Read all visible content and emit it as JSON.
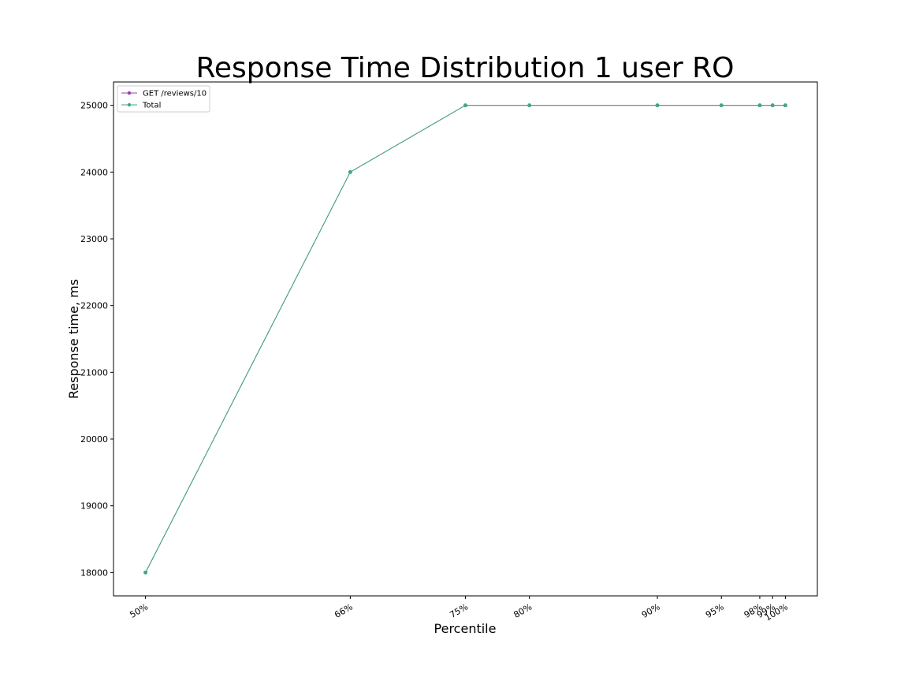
{
  "chart_data": {
    "type": "line",
    "title": "Response Time Distribution 1 user RO",
    "xlabel": "Percentile",
    "ylabel": "Response time, ms",
    "x": [
      50,
      66,
      75,
      80,
      90,
      95,
      98,
      99,
      100
    ],
    "x_tick_labels": [
      "50%",
      "66%",
      "75%",
      "80%",
      "90%",
      "95%",
      "98%",
      "99%",
      "100%"
    ],
    "y_ticks": [
      18000,
      19000,
      20000,
      21000,
      22000,
      23000,
      24000,
      25000
    ],
    "xlim": [
      47.5,
      102.5
    ],
    "ylim": [
      17650,
      25350
    ],
    "grid": false,
    "legend_position": "top-left",
    "series": [
      {
        "name": "GET /reviews/10",
        "color": "#9b3fb0",
        "values": [
          18000,
          24000,
          25000,
          25000,
          25000,
          25000,
          25000,
          25000,
          25000
        ]
      },
      {
        "name": "Total",
        "color": "#3aaa86",
        "values": [
          18000,
          24000,
          25000,
          25000,
          25000,
          25000,
          25000,
          25000,
          25000
        ]
      }
    ]
  }
}
